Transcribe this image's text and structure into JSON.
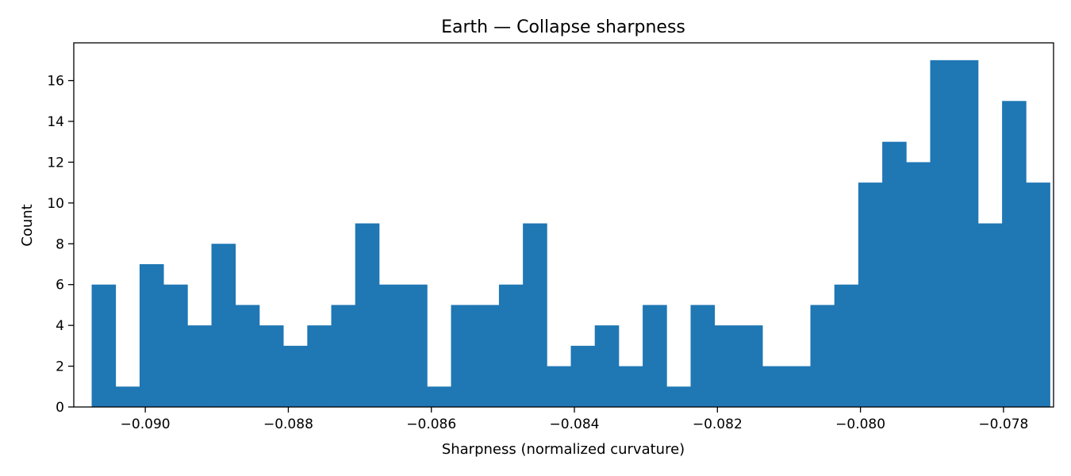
{
  "chart_data": {
    "type": "bar",
    "title": "Earth — Collapse sharpness",
    "xlabel": "Sharpness (normalized curvature)",
    "ylabel": "Count",
    "bin_start": -0.09075,
    "bin_width": 0.000335,
    "counts": [
      6,
      1,
      7,
      6,
      4,
      8,
      5,
      4,
      3,
      4,
      5,
      9,
      6,
      6,
      1,
      5,
      5,
      6,
      9,
      2,
      3,
      4,
      2,
      5,
      1,
      5,
      4,
      4,
      2,
      2,
      5,
      6,
      11,
      13,
      12,
      17,
      17,
      9,
      15,
      11
    ],
    "xlim": [
      -0.091,
      -0.0773
    ],
    "ylim": [
      0,
      17.85
    ],
    "x_ticks": [
      -0.09,
      -0.088,
      -0.086,
      -0.084,
      -0.082,
      -0.08,
      -0.078
    ],
    "x_tick_labels": [
      "−0.090",
      "−0.088",
      "−0.086",
      "−0.084",
      "−0.082",
      "−0.080",
      "−0.078"
    ],
    "y_ticks": [
      0,
      2,
      4,
      6,
      8,
      10,
      12,
      14,
      16
    ],
    "y_tick_labels": [
      "0",
      "2",
      "4",
      "6",
      "8",
      "10",
      "12",
      "14",
      "16"
    ],
    "bar_color": "#1f77b4",
    "grid": false,
    "legend": "none"
  }
}
